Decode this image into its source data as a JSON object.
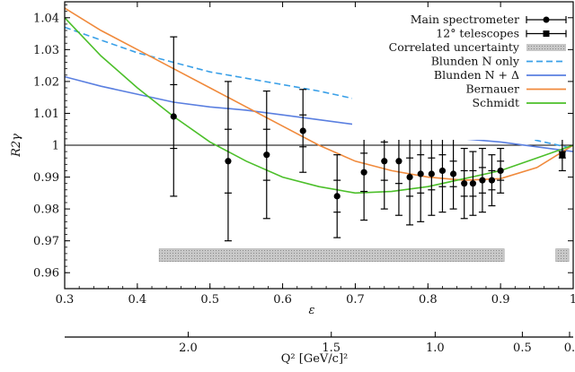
{
  "chart_data": {
    "type": "scatter",
    "title": "",
    "xlabel": "ε",
    "ylabel": "R2γ",
    "x2label": "Q² [GeV/c]²",
    "xlim": [
      0.3,
      1.0
    ],
    "ylim": [
      0.955,
      1.045
    ],
    "xticks": [
      "0.3",
      "0.4",
      "0.5",
      "0.6",
      "0.7",
      "0.8",
      "0.9",
      "1"
    ],
    "yticks": [
      "0.96",
      "0.97",
      "0.98",
      "0.99",
      "1",
      "1.01",
      "1.02",
      "1.03",
      "1.04"
    ],
    "top_axis_ticks": [
      {
        "label": "2.0",
        "eps": 0.47
      },
      {
        "label": "1.5",
        "eps": 0.667
      },
      {
        "label": "1.0",
        "eps": 0.81
      },
      {
        "label": "0.5",
        "eps": 0.93
      },
      {
        "label": "0.",
        "eps": 0.995
      }
    ],
    "reference_line_y": 1.0,
    "legend": {
      "placement": "top-right",
      "entries": [
        {
          "label": "Main spectrometer",
          "kind": "errorbar-circle",
          "color": "#000000"
        },
        {
          "label": "12° telescopes",
          "kind": "errorbar-square",
          "color": "#000000"
        },
        {
          "label": "Correlated uncertainty",
          "kind": "band",
          "color": "#b8b8b8"
        },
        {
          "label": "Blunden N only",
          "kind": "dashed",
          "color": "#3aa0e8"
        },
        {
          "label": "Blunden N + Δ",
          "kind": "line",
          "color": "#5a7fe0"
        },
        {
          "label": "Bernauer",
          "kind": "line",
          "color": "#f08a3c"
        },
        {
          "label": "Schmidt",
          "kind": "line",
          "color": "#4cbf2a"
        }
      ]
    },
    "series": [
      {
        "name": "Main spectrometer",
        "marker": "circle",
        "points": [
          {
            "x": 0.45,
            "y": 1.009,
            "stat": 0.01,
            "sys": 0.015
          },
          {
            "x": 0.525,
            "y": 0.995,
            "stat": 0.01,
            "sys": 0.015
          },
          {
            "x": 0.578,
            "y": 0.997,
            "stat": 0.008,
            "sys": 0.012
          },
          {
            "x": 0.628,
            "y": 1.0045,
            "stat": 0.005,
            "sys": 0.008
          },
          {
            "x": 0.675,
            "y": 0.984,
            "stat": 0.005,
            "sys": 0.008
          },
          {
            "x": 0.712,
            "y": 0.9915,
            "stat": 0.006,
            "sys": 0.009
          },
          {
            "x": 0.74,
            "y": 0.995,
            "stat": 0.006,
            "sys": 0.009
          },
          {
            "x": 0.76,
            "y": 0.995,
            "stat": 0.007,
            "sys": 0.01
          },
          {
            "x": 0.775,
            "y": 0.99,
            "stat": 0.006,
            "sys": 0.009
          },
          {
            "x": 0.79,
            "y": 0.991,
            "stat": 0.006,
            "sys": 0.009
          },
          {
            "x": 0.805,
            "y": 0.991,
            "stat": 0.005,
            "sys": 0.008
          },
          {
            "x": 0.82,
            "y": 0.992,
            "stat": 0.005,
            "sys": 0.008
          },
          {
            "x": 0.835,
            "y": 0.991,
            "stat": 0.004,
            "sys": 0.007
          },
          {
            "x": 0.85,
            "y": 0.988,
            "stat": 0.004,
            "sys": 0.007
          },
          {
            "x": 0.862,
            "y": 0.988,
            "stat": 0.004,
            "sys": 0.006
          },
          {
            "x": 0.875,
            "y": 0.989,
            "stat": 0.004,
            "sys": 0.006
          },
          {
            "x": 0.888,
            "y": 0.989,
            "stat": 0.003,
            "sys": 0.005
          },
          {
            "x": 0.9,
            "y": 0.992,
            "stat": 0.003,
            "sys": 0.004
          }
        ]
      },
      {
        "name": "12° telescopes",
        "marker": "square",
        "points": [
          {
            "x": 0.985,
            "y": 0.997,
            "stat": 0.001,
            "sys": 0.004
          }
        ]
      }
    ],
    "correlated_band": [
      {
        "x0": 0.43,
        "x1": 0.905,
        "y0": 0.9635,
        "y1": 0.9675
      },
      {
        "x0": 0.976,
        "x1": 0.994,
        "y0": 0.9635,
        "y1": 0.9675
      }
    ],
    "curves": [
      {
        "name": "Blunden N only",
        "style": "dashed",
        "color": "#3aa0e8",
        "x": [
          0.3,
          0.35,
          0.4,
          0.45,
          0.5,
          0.55,
          0.6,
          0.65,
          0.7,
          0.75,
          0.8,
          0.85,
          0.9,
          0.95,
          1.0
        ],
        "y": [
          1.037,
          1.033,
          1.029,
          1.026,
          1.023,
          1.021,
          1.019,
          1.017,
          1.0145,
          1.012,
          1.0095,
          1.007,
          1.004,
          1.0015,
          0.999
        ]
      },
      {
        "name": "Blunden N + Δ",
        "style": "solid",
        "color": "#5a7fe0",
        "x": [
          0.3,
          0.35,
          0.4,
          0.45,
          0.5,
          0.55,
          0.6,
          0.65,
          0.7,
          0.75,
          0.8,
          0.85,
          0.9,
          0.95,
          1.0
        ],
        "y": [
          1.0215,
          1.0185,
          1.016,
          1.0135,
          1.012,
          1.011,
          1.0095,
          1.008,
          1.0065,
          1.005,
          1.0035,
          1.002,
          1.001,
          0.9995,
          0.998
        ]
      },
      {
        "name": "Bernauer",
        "style": "solid",
        "color": "#f08a3c",
        "x": [
          0.3,
          0.35,
          0.4,
          0.45,
          0.5,
          0.55,
          0.6,
          0.65,
          0.7,
          0.75,
          0.8,
          0.85,
          0.9,
          0.95,
          1.0
        ],
        "y": [
          1.043,
          1.036,
          1.03,
          1.024,
          1.018,
          1.012,
          1.006,
          1.0,
          0.995,
          0.992,
          0.99,
          0.989,
          0.9895,
          0.993,
          1.0
        ]
      },
      {
        "name": "Schmidt",
        "style": "solid",
        "color": "#4cbf2a",
        "x": [
          0.3,
          0.35,
          0.4,
          0.45,
          0.5,
          0.55,
          0.6,
          0.65,
          0.7,
          0.75,
          0.8,
          0.85,
          0.9,
          0.95,
          1.0
        ],
        "y": [
          1.04,
          1.028,
          1.018,
          1.009,
          1.001,
          0.995,
          0.99,
          0.987,
          0.985,
          0.9855,
          0.987,
          0.9895,
          0.992,
          0.996,
          1.0
        ]
      }
    ]
  }
}
